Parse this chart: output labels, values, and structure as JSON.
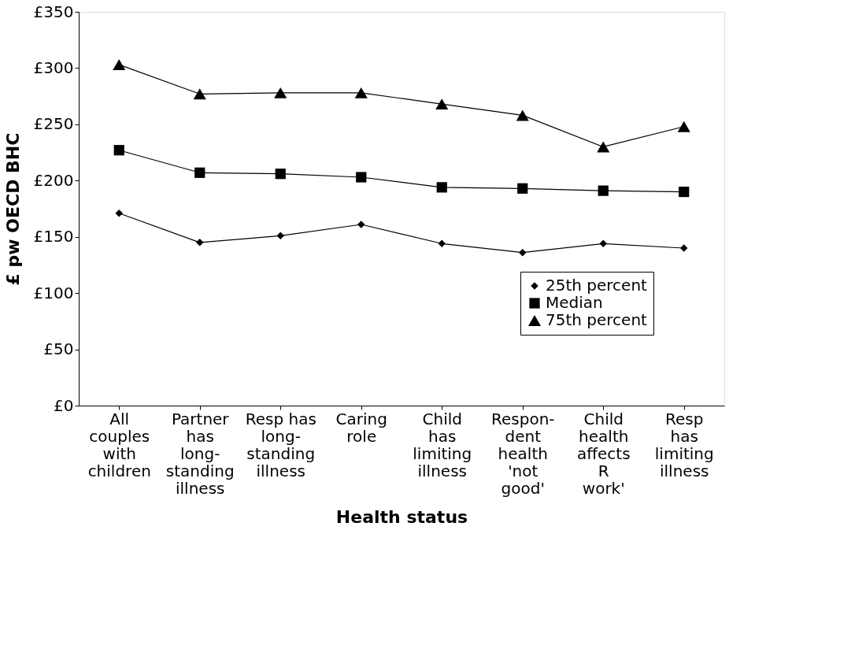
{
  "chart_data": {
    "type": "line",
    "xlabel": "Health status",
    "ylabel": "£ pw OECD BHC",
    "categories": [
      "All\ncouples\nwith\nchildren",
      "Partner\nhas\nlong-\nstanding\nillness",
      "Resp has\nlong-\nstanding\nillness",
      "Caring\nrole",
      "Child\nhas\nlimiting\nillness",
      "Respon-\ndent\nhealth\n'not\ngood'",
      "Child\nhealth\naffects\nR\nwork'",
      "Resp\nhas\nlimiting\nillness"
    ],
    "series": [
      {
        "name": "25th percent",
        "color": "#000000",
        "marker": "diamond",
        "values": [
          171,
          145,
          151,
          161,
          144,
          136,
          144,
          140
        ]
      },
      {
        "name": "Median",
        "color": "#000000",
        "marker": "square",
        "values": [
          227,
          207,
          206,
          203,
          194,
          193,
          191,
          190
        ]
      },
      {
        "name": "75th percent",
        "color": "#000000",
        "marker": "triangle",
        "values": [
          303,
          277,
          278,
          278,
          268,
          258,
          230,
          248
        ]
      }
    ],
    "ylim": [
      0,
      350
    ],
    "yticks": [
      {
        "value": 0,
        "label": "£0"
      },
      {
        "value": 50,
        "label": "£50"
      },
      {
        "value": 100,
        "label": "£100"
      },
      {
        "value": 150,
        "label": "£150"
      },
      {
        "value": 200,
        "label": "£200"
      },
      {
        "value": 250,
        "label": "£250"
      },
      {
        "value": 300,
        "label": "£300"
      },
      {
        "value": 350,
        "label": "£350"
      }
    ],
    "grid": false,
    "legend": "bottom right",
    "line_style": "solid"
  }
}
